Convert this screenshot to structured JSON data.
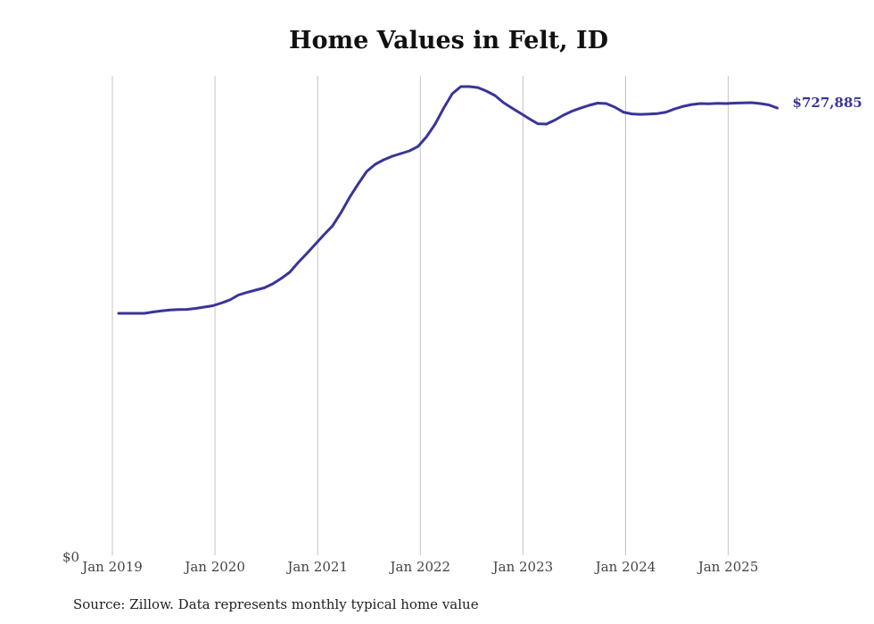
{
  "chart_data": {
    "type": "line",
    "title": "Home Values in Felt, ID",
    "xlabel": "",
    "ylabel": "",
    "ylim": [
      0,
      780000
    ],
    "y_tick_labels": [
      "$0"
    ],
    "x_tick_labels": [
      "Jan 2019",
      "Jan 2020",
      "Jan 2021",
      "Jan 2022",
      "Jan 2023",
      "Jan 2024",
      "Jan 2025"
    ],
    "grid": "vertical",
    "line_color": "#39349a",
    "end_label": "$727,885",
    "start": "2019-01",
    "series": [
      {
        "name": "Typical home value",
        "values": [
          395000,
          395000,
          395000,
          395000,
          397200,
          398900,
          400500,
          401100,
          401500,
          403000,
          405200,
          407300,
          411700,
          416700,
          424700,
          429000,
          432700,
          436300,
          442800,
          451500,
          461600,
          477500,
          492000,
          507200,
          522400,
          536800,
          558500,
          583100,
          604800,
          625100,
          636700,
          643900,
          649700,
          654100,
          658400,
          665600,
          681500,
          701800,
          727800,
          751000,
          762600,
          762600,
          761100,
          755400,
          748100,
          736600,
          727800,
          719200,
          710500,
          702500,
          701800,
          708300,
          716300,
          722800,
          727800,
          732200,
          735800,
          735100,
          729300,
          721300,
          718400,
          717700,
          718000,
          718900,
          721300,
          726400,
          730700,
          733600,
          735100,
          734800,
          735400,
          735100,
          735800,
          736300,
          736600,
          735100,
          732900,
          727885
        ]
      }
    ]
  },
  "footer": {
    "source": "Source: Zillow. Data represents monthly typical home value"
  }
}
